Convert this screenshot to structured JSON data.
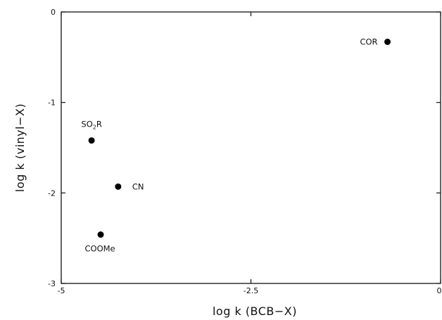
{
  "chart_data": {
    "type": "scatter",
    "xlabel": "log k (BCB−X)",
    "ylabel": "log k (vinyl−X)",
    "xlim": [
      -5,
      0
    ],
    "ylim": [
      -3,
      0
    ],
    "x_ticks": [
      -5,
      -2.5,
      0
    ],
    "x_tick_labels": [
      "-5",
      "-2.5",
      "0"
    ],
    "y_ticks": [
      0,
      -1,
      -2,
      -3
    ],
    "y_tick_labels": [
      "0",
      "-1",
      "-2",
      "-3"
    ],
    "grid": false,
    "legend": "none",
    "marker_color": "#000000",
    "points": [
      {
        "label": "COR",
        "x": -0.7,
        "y": -0.33
      },
      {
        "label": "SO₂R",
        "label_main": "SO",
        "label_sub": "2",
        "label_tail": "R",
        "x": -4.6,
        "y": -1.42
      },
      {
        "label": "CN",
        "x": -4.25,
        "y": -1.93
      },
      {
        "label": "COOMe",
        "x": -4.48,
        "y": -2.46
      }
    ]
  }
}
